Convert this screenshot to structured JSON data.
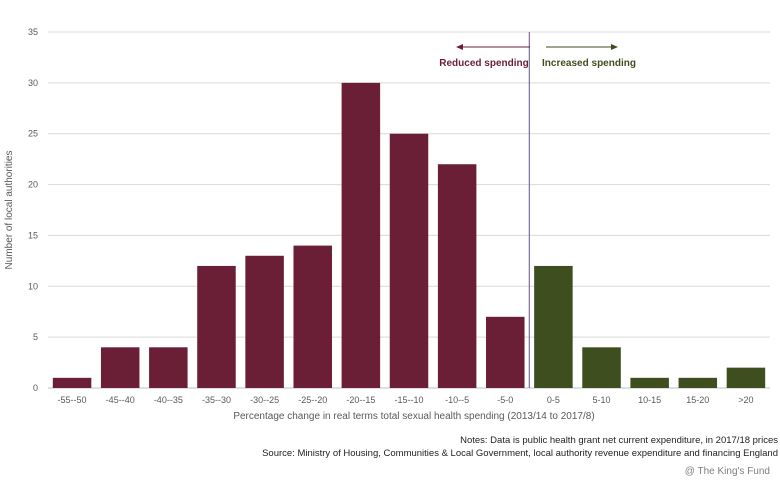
{
  "chart_data": {
    "type": "bar",
    "categories": [
      "-55--50",
      "-45--40",
      "-40--35",
      "-35--30",
      "-30--25",
      "-25--20",
      "-20--15",
      "-15--10",
      "-10--5",
      "-5-0",
      "0-5",
      "5-10",
      "10-15",
      "15-20",
      ">20"
    ],
    "values": [
      1,
      4,
      4,
      12,
      13,
      14,
      30,
      25,
      22,
      7,
      12,
      4,
      1,
      1,
      2
    ],
    "xlabel": "Percentage change in real terms total sexual health spending (2013/14 to 2017/8)",
    "ylabel": "Number of local authorities",
    "ylim": [
      0,
      35
    ],
    "yticks": [
      0,
      5,
      10,
      15,
      20,
      25,
      30,
      35
    ],
    "grid": true,
    "colors": {
      "reduced": "#6b1f37",
      "increased": "#3f4e1f",
      "divider": "#7b6e9c",
      "grid": "#d9d9d9"
    },
    "annotations": {
      "reduced": "Reduced spending",
      "increased": "Increased spending"
    }
  },
  "notes": {
    "line1": "Notes: Data is public health grant net current expenditure, in 2017/18 prices",
    "line2": "Source: Ministry of Housing, Communities & Local Government, local authority revenue expenditure and financing England"
  },
  "credit": "@ The King's Fund"
}
